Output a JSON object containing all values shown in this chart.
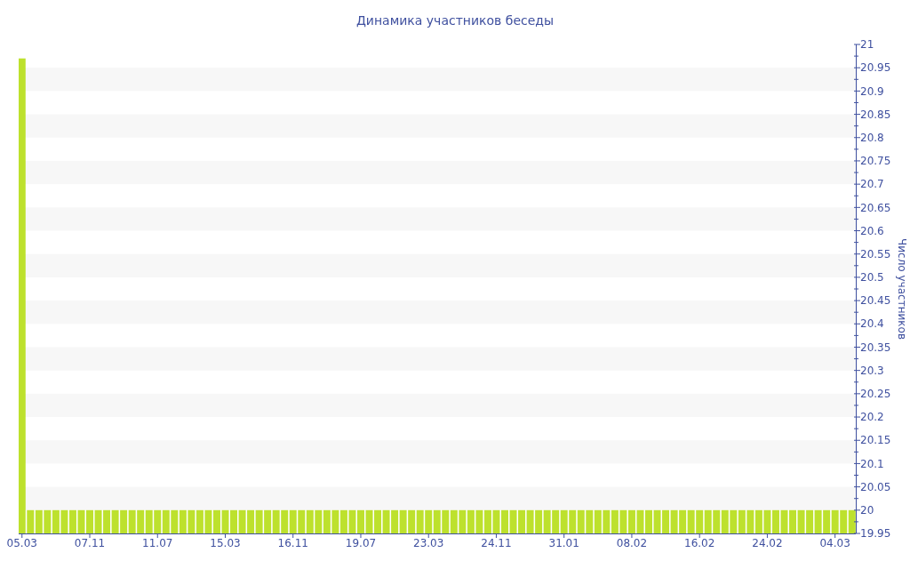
{
  "chart_data": {
    "type": "bar",
    "title": "Динамика участников беседы",
    "ylabel": "Число участников",
    "categories": [
      "05.03",
      null,
      null,
      null,
      null,
      null,
      null,
      null,
      "07.11",
      null,
      null,
      null,
      null,
      null,
      null,
      null,
      "11.07",
      null,
      null,
      null,
      null,
      null,
      null,
      null,
      "15.03",
      null,
      null,
      null,
      null,
      null,
      null,
      null,
      "16.11",
      null,
      null,
      null,
      null,
      null,
      null,
      null,
      "19.07",
      null,
      null,
      null,
      null,
      null,
      null,
      null,
      "23.03",
      null,
      null,
      null,
      null,
      null,
      null,
      null,
      "24.11",
      null,
      null,
      null,
      null,
      null,
      null,
      null,
      "31.01",
      null,
      null,
      null,
      null,
      null,
      null,
      null,
      "08.02",
      null,
      null,
      null,
      null,
      null,
      null,
      null,
      "16.02",
      null,
      null,
      null,
      null,
      null,
      null,
      null,
      "24.02",
      null,
      null,
      null,
      null,
      null,
      null,
      null,
      "04.03",
      null,
      null
    ],
    "values": [
      20.97,
      20,
      20,
      20,
      20,
      20,
      20,
      20,
      20,
      20,
      20,
      20,
      20,
      20,
      20,
      20,
      20,
      20,
      20,
      20,
      20,
      20,
      20,
      20,
      20,
      20,
      20,
      20,
      20,
      20,
      20,
      20,
      20,
      20,
      20,
      20,
      20,
      20,
      20,
      20,
      20,
      20,
      20,
      20,
      20,
      20,
      20,
      20,
      20,
      20,
      20,
      20,
      20,
      20,
      20,
      20,
      20,
      20,
      20,
      20,
      20,
      20,
      20,
      20,
      20,
      20,
      20,
      20,
      20,
      20,
      20,
      20,
      20,
      20,
      20,
      20,
      20,
      20,
      20,
      20,
      20,
      20,
      20,
      20,
      20,
      20,
      20,
      20,
      20,
      20,
      20,
      20,
      20,
      20,
      20,
      20,
      20,
      20,
      20
    ],
    "color": "#bde12d",
    "ylim": [
      19.95,
      21
    ],
    "yticks": [
      19.95,
      {
        "value": 19.975,
        "label": null
      },
      20,
      {
        "value": 20.025,
        "label": null
      },
      20.05,
      {
        "value": 20.075,
        "label": null
      },
      20.1,
      {
        "value": 20.125,
        "label": null
      },
      20.15,
      {
        "value": 20.175,
        "label": null
      },
      20.2,
      {
        "value": 20.225,
        "label": null
      },
      20.25,
      {
        "value": 20.275,
        "label": null
      },
      20.3,
      {
        "value": 20.325,
        "label": null
      },
      20.35,
      {
        "value": 20.375,
        "label": null
      },
      20.4,
      {
        "value": 20.425,
        "label": null
      },
      20.45,
      {
        "value": 20.475,
        "label": null
      },
      20.5,
      {
        "value": 20.525,
        "label": null
      },
      20.55,
      {
        "value": 20.575,
        "label": null
      },
      20.6,
      {
        "value": 20.625,
        "label": null
      },
      20.65,
      {
        "value": 20.675,
        "label": null
      },
      20.7,
      {
        "value": 20.725,
        "label": null
      },
      20.75,
      {
        "value": 20.775,
        "label": null
      },
      20.8,
      {
        "value": 20.825,
        "label": null
      },
      20.85,
      {
        "value": 20.875,
        "label": null
      },
      20.9,
      {
        "value": 20.925,
        "label": null
      },
      20.95,
      {
        "value": 20.975,
        "label": null
      },
      21
    ],
    "bands": [
      {
        "axis": "y",
        "from": 20,
        "to": 20.05,
        "color": "#f7f7f7"
      },
      {
        "axis": "y",
        "from": 20.1,
        "to": 20.15,
        "color": "#f7f7f7"
      },
      {
        "axis": "y",
        "from": 20.2,
        "to": 20.25,
        "color": "#f7f7f7"
      },
      {
        "axis": "y",
        "from": 20.3,
        "to": 20.35,
        "color": "#f7f7f7"
      },
      {
        "axis": "y",
        "from": 20.4,
        "to": 20.45,
        "color": "#f7f7f7"
      },
      {
        "axis": "y",
        "from": 20.5,
        "to": 20.55,
        "color": "#f7f7f7"
      },
      {
        "axis": "y",
        "from": 20.6,
        "to": 20.65,
        "color": "#f7f7f7"
      },
      {
        "axis": "y",
        "from": 20.7,
        "to": 20.75,
        "color": "#f7f7f7"
      },
      {
        "axis": "y",
        "from": 20.8,
        "to": 20.85,
        "color": "#f7f7f7"
      },
      {
        "axis": "y",
        "from": 20.9,
        "to": 20.95,
        "color": "#f7f7f7"
      }
    ]
  }
}
